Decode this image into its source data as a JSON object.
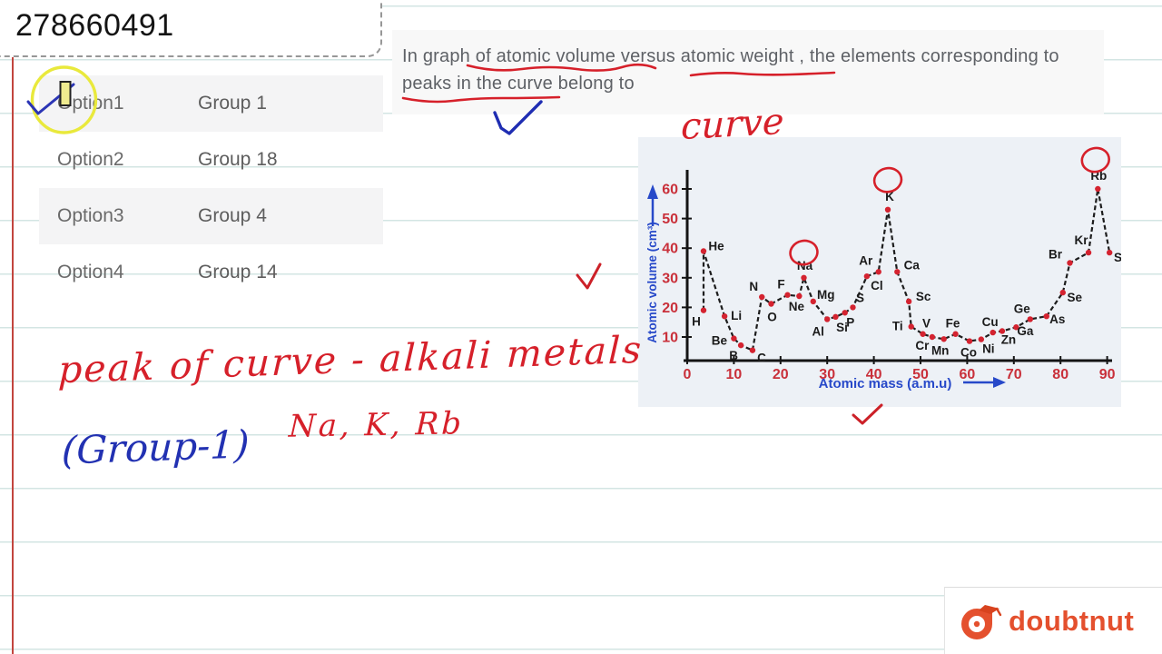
{
  "id_tab": {
    "number": "278660491"
  },
  "options": {
    "rows": [
      {
        "label": "Option1",
        "value": "Group 1",
        "selected": true
      },
      {
        "label": "Option2",
        "value": "Group 18",
        "selected": false
      },
      {
        "label": "Option3",
        "value": "Group 4",
        "selected": false
      },
      {
        "label": "Option4",
        "value": "Group 14",
        "selected": false
      }
    ]
  },
  "question": {
    "text_line1": "In graph of atomic volume versus atomic weight , the elements corresponding to",
    "text_line2": "peaks in the curve belong to"
  },
  "handwriting": {
    "curve_word": "curve",
    "peak_note": "peak of curve - alkali metals",
    "elements": "Na, K, Rb",
    "group": "(Group-1)",
    "ink_red": "#d6202a",
    "ink_blue": "#2231b2",
    "highlight_yellow": "#e9e93c"
  },
  "chart_data": {
    "type": "line",
    "title": "",
    "xlabel": "Atomic mass (a.m.u)",
    "ylabel": "Atomic volume (cm³)",
    "xlim": [
      0,
      93
    ],
    "ylim": [
      0,
      65
    ],
    "x_ticks": [
      0,
      10,
      20,
      30,
      40,
      50,
      60,
      70,
      80,
      90
    ],
    "y_ticks": [
      10,
      20,
      30,
      40,
      50,
      60
    ],
    "grid": false,
    "legend": false,
    "colors": {
      "point": "#d42330",
      "line": "#1d1d1d",
      "axis": "#141414",
      "tick_label": "#c9303a",
      "axis_title": "#2749c9",
      "annotation": "#d6202a"
    },
    "series": [
      {
        "name": "atomic volume curve",
        "points": [
          {
            "el": "H",
            "x": 3.5,
            "y": 19,
            "dx": -8,
            "dy": 17
          },
          {
            "el": "He",
            "x": 3.5,
            "y": 39,
            "dx": 14,
            "dy": -1
          },
          {
            "el": "Li",
            "x": 8,
            "y": 17,
            "dx": 13,
            "dy": 4
          },
          {
            "el": "Be",
            "x": 10,
            "y": 9.5,
            "dx": -16,
            "dy": 7
          },
          {
            "el": "B",
            "x": 11.5,
            "y": 7.2,
            "dx": -8,
            "dy": 16
          },
          {
            "el": "C",
            "x": 14,
            "y": 5.5,
            "dx": 10,
            "dy": 13
          },
          {
            "el": "N",
            "x": 16,
            "y": 23.5,
            "dx": -9,
            "dy": -7
          },
          {
            "el": "O",
            "x": 18,
            "y": 21.2,
            "dx": 1,
            "dy": 19
          },
          {
            "el": "F",
            "x": 21.5,
            "y": 24.2,
            "dx": -7,
            "dy": -7
          },
          {
            "el": "Ne",
            "x": 24,
            "y": 23.8,
            "dx": -3,
            "dy": 16
          },
          {
            "el": "Na",
            "x": 25,
            "y": 30,
            "dx": 1,
            "dy": -9
          },
          {
            "el": "Mg",
            "x": 27,
            "y": 22,
            "dx": 14,
            "dy": -3
          },
          {
            "el": "Al",
            "x": 30,
            "y": 16,
            "dx": -10,
            "dy": 18
          },
          {
            "el": "Si",
            "x": 31.8,
            "y": 16.8,
            "dx": 7,
            "dy": 16
          },
          {
            "el": "P",
            "x": 33.8,
            "y": 18.2,
            "dx": 6,
            "dy": 15
          },
          {
            "el": "S",
            "x": 35.5,
            "y": 20,
            "dx": 8,
            "dy": -6
          },
          {
            "el": "Cl",
            "x": 38.5,
            "y": 30.5,
            "dx": 11,
            "dy": 15
          },
          {
            "el": "Ar",
            "x": 41,
            "y": 32,
            "dx": -14,
            "dy": -8
          },
          {
            "el": "K",
            "x": 43,
            "y": 53,
            "dx": 2,
            "dy": -10
          },
          {
            "el": "Ca",
            "x": 45,
            "y": 32,
            "dx": 16,
            "dy": -3
          },
          {
            "el": "Sc",
            "x": 47.5,
            "y": 22,
            "dx": 16,
            "dy": -1
          },
          {
            "el": "Ti",
            "x": 48,
            "y": 13.5,
            "dx": -15,
            "dy": 4
          },
          {
            "el": "V",
            "x": 50.5,
            "y": 11,
            "dx": 4,
            "dy": -7
          },
          {
            "el": "Cr",
            "x": 52.5,
            "y": 10,
            "dx": -11,
            "dy": 14
          },
          {
            "el": "Mn",
            "x": 55,
            "y": 9.3,
            "dx": -4,
            "dy": 17
          },
          {
            "el": "Fe",
            "x": 57.5,
            "y": 11,
            "dx": -3,
            "dy": -7
          },
          {
            "el": "Co",
            "x": 60.5,
            "y": 8.6,
            "dx": -1,
            "dy": 17
          },
          {
            "el": "Ni",
            "x": 63,
            "y": 9.2,
            "dx": 8,
            "dy": 15
          },
          {
            "el": "Cu",
            "x": 65.5,
            "y": 11.5,
            "dx": -3,
            "dy": -7
          },
          {
            "el": "Zn",
            "x": 67.5,
            "y": 12,
            "dx": 7,
            "dy": 14
          },
          {
            "el": "Ga",
            "x": 70.5,
            "y": 13.3,
            "dx": 10,
            "dy": 9
          },
          {
            "el": "Ge",
            "x": 73.5,
            "y": 16,
            "dx": -9,
            "dy": -7
          },
          {
            "el": "As",
            "x": 77,
            "y": 17,
            "dx": 12,
            "dy": 8
          },
          {
            "el": "Se",
            "x": 80.5,
            "y": 25,
            "dx": 13,
            "dy": 10
          },
          {
            "el": "Br",
            "x": 82,
            "y": 35,
            "dx": -16,
            "dy": -5
          },
          {
            "el": "Kr",
            "x": 86,
            "y": 38.5,
            "dx": -8,
            "dy": -9
          },
          {
            "el": "Rb",
            "x": 88,
            "y": 60,
            "dx": 1,
            "dy": -10
          },
          {
            "el": "Sr",
            "x": 90.5,
            "y": 38.5,
            "dx": 12,
            "dy": 10
          }
        ]
      }
    ],
    "peak_circles": [
      {
        "el": "Na",
        "x": 25,
        "y": 38.5
      },
      {
        "el": "K",
        "x": 43,
        "y": 63
      },
      {
        "el": "Rb",
        "x": 87.5,
        "y": 69.8
      }
    ]
  },
  "footer": {
    "brand": "doubtnut",
    "brand_color": "#e4502e"
  }
}
